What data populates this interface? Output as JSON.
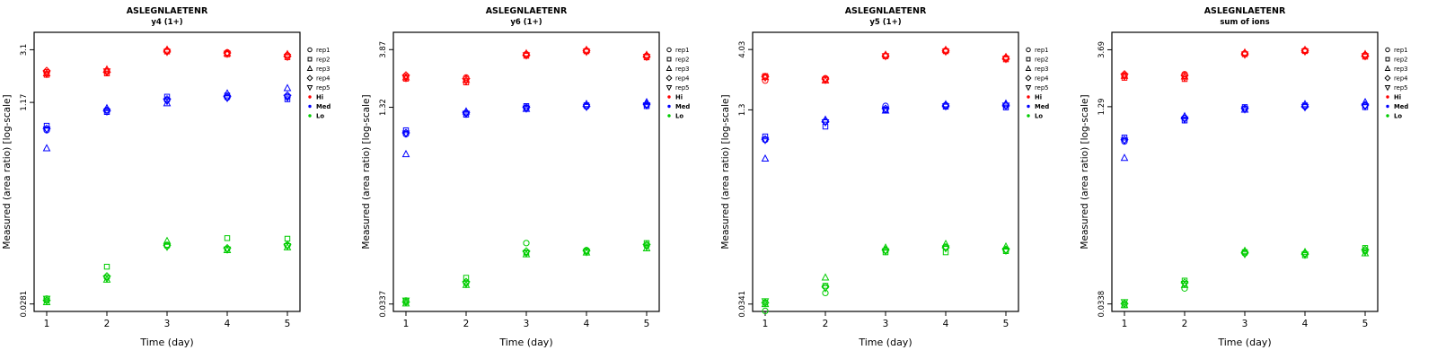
{
  "page": {
    "background": "#ffffff"
  },
  "legend": {
    "reps": [
      {
        "label": "rep1",
        "symbol": "circle"
      },
      {
        "label": "rep2",
        "symbol": "square"
      },
      {
        "label": "rep3",
        "symbol": "triangle-up"
      },
      {
        "label": "rep4",
        "symbol": "diamond"
      },
      {
        "label": "rep5",
        "symbol": "triangle-down"
      }
    ],
    "groups": [
      {
        "label": "Hi",
        "color": "#FF0000"
      },
      {
        "label": "Med",
        "color": "#0000FF"
      },
      {
        "label": "Lo",
        "color": "#00CC00"
      }
    ]
  },
  "chart_data": [
    {
      "type": "scatter",
      "title": "ASLEGNLAETENR",
      "subtitle": "y4 (1+)",
      "xlabel": "Time (day)",
      "ylabel": "Measured (area ratio) [log-scale]",
      "x_ticks": [
        1,
        2,
        3,
        4,
        5
      ],
      "y_scale": "log",
      "y_ticks": [
        0.0281,
        1.17,
        3.1
      ],
      "y_tick_labels": [
        "0.0281",
        "1.17",
        "3.1"
      ],
      "series": [
        {
          "name": "Hi",
          "color": "#FF0000",
          "rep_values": [
            [
              2.05,
              2.1,
              3.05,
              2.95,
              2.8
            ],
            [
              1.95,
              2.0,
              3.0,
              2.85,
              2.7
            ],
            [
              2.0,
              2.15,
              3.1,
              2.9,
              2.85
            ],
            [
              2.1,
              2.05,
              3.02,
              2.92,
              2.75
            ],
            [
              1.98,
              2.08,
              2.98,
              2.88,
              2.72
            ]
          ]
        },
        {
          "name": "Med",
          "color": "#0000FF",
          "rep_values": [
            [
              0.7,
              1.02,
              1.22,
              1.28,
              1.3
            ],
            [
              0.76,
              0.98,
              1.3,
              1.33,
              1.24
            ],
            [
              0.5,
              1.05,
              1.15,
              1.38,
              1.52
            ],
            [
              0.72,
              1.0,
              1.24,
              1.3,
              1.33
            ],
            [
              0.71,
              0.99,
              1.2,
              1.27,
              1.28
            ]
          ]
        },
        {
          "name": "Lo",
          "color": "#00CC00",
          "rep_values": [
            [
              0.031,
              0.046,
              0.082,
              0.078,
              0.083
            ],
            [
              0.03,
              0.056,
              0.084,
              0.095,
              0.094
            ],
            [
              0.029,
              0.044,
              0.09,
              0.076,
              0.08
            ],
            [
              0.03,
              0.047,
              0.083,
              0.079,
              0.084
            ],
            [
              0.031,
              0.045,
              0.081,
              0.077,
              0.082
            ]
          ]
        }
      ]
    },
    {
      "type": "scatter",
      "title": "ASLEGNLAETENR",
      "subtitle": "y6 (1+)",
      "xlabel": "Time (day)",
      "ylabel": "Measured (area ratio) [log-scale]",
      "x_ticks": [
        1,
        2,
        3,
        4,
        5
      ],
      "y_scale": "log",
      "y_ticks": [
        0.0337,
        1.32,
        3.87
      ],
      "y_tick_labels": [
        "0.0337",
        "1.32",
        "3.87"
      ],
      "series": [
        {
          "name": "Hi",
          "color": "#FF0000",
          "rep_values": [
            [
              2.35,
              2.3,
              3.55,
              3.8,
              3.45
            ],
            [
              2.25,
              2.1,
              3.45,
              3.75,
              3.35
            ],
            [
              2.3,
              2.2,
              3.6,
              3.85,
              3.5
            ],
            [
              2.4,
              2.25,
              3.5,
              3.78,
              3.4
            ],
            [
              2.28,
              2.15,
              3.48,
              3.72,
              3.38
            ]
          ]
        },
        {
          "name": "Med",
          "color": "#0000FF",
          "rep_values": [
            [
              0.8,
              1.18,
              1.3,
              1.34,
              1.38
            ],
            [
              0.86,
              1.15,
              1.35,
              1.37,
              1.35
            ],
            [
              0.55,
              1.22,
              1.28,
              1.4,
              1.45
            ],
            [
              0.82,
              1.2,
              1.32,
              1.35,
              1.4
            ],
            [
              0.81,
              1.17,
              1.29,
              1.33,
              1.37
            ]
          ]
        },
        {
          "name": "Lo",
          "color": "#00CC00",
          "rep_values": [
            [
              0.036,
              0.05,
              0.105,
              0.092,
              0.1
            ],
            [
              0.035,
              0.055,
              0.088,
              0.09,
              0.105
            ],
            [
              0.034,
              0.048,
              0.085,
              0.088,
              0.095
            ],
            [
              0.035,
              0.051,
              0.09,
              0.091,
              0.102
            ],
            [
              0.036,
              0.049,
              0.087,
              0.089,
              0.098
            ]
          ]
        }
      ]
    },
    {
      "type": "scatter",
      "title": "ASLEGNLAETENR",
      "subtitle": "y5 (1+)",
      "xlabel": "Time (day)",
      "ylabel": "Measured (area ratio) [log-scale]",
      "x_ticks": [
        1,
        2,
        3,
        4,
        5
      ],
      "y_scale": "log",
      "y_ticks": [
        0.0341,
        1.3,
        4.03
      ],
      "y_tick_labels": [
        "0.0341",
        "1.3",
        "4.03"
      ],
      "series": [
        {
          "name": "Hi",
          "color": "#FF0000",
          "rep_values": [
            [
              2.25,
              2.35,
              3.6,
              3.95,
              3.45
            ],
            [
              2.45,
              2.3,
              3.55,
              3.9,
              3.35
            ],
            [
              2.4,
              2.25,
              3.65,
              4.0,
              3.5
            ],
            [
              2.42,
              2.32,
              3.58,
              3.92,
              3.4
            ],
            [
              2.38,
              2.28,
              3.56,
              3.88,
              3.38
            ]
          ]
        },
        {
          "name": "Med",
          "color": "#0000FF",
          "rep_values": [
            [
              0.74,
              1.05,
              1.4,
              1.42,
              1.4
            ],
            [
              0.79,
              0.95,
              1.3,
              1.38,
              1.36
            ],
            [
              0.52,
              1.08,
              1.28,
              1.44,
              1.46
            ],
            [
              0.75,
              1.04,
              1.33,
              1.4,
              1.42
            ],
            [
              0.74,
              1.03,
              1.31,
              1.39,
              1.41
            ]
          ]
        },
        {
          "name": "Lo",
          "color": "#00CC00",
          "rep_values": [
            [
              0.03,
              0.042,
              0.093,
              0.1,
              0.094
            ],
            [
              0.035,
              0.048,
              0.09,
              0.09,
              0.092
            ],
            [
              0.034,
              0.056,
              0.098,
              0.105,
              0.1
            ],
            [
              0.035,
              0.047,
              0.094,
              0.098,
              0.095
            ],
            [
              0.036,
              0.046,
              0.092,
              0.097,
              0.093
            ]
          ]
        }
      ]
    },
    {
      "type": "scatter",
      "title": "ASLEGNLAETENR",
      "subtitle": "sum of ions",
      "xlabel": "Time (day)",
      "ylabel": "Measured (area ratio) [log-scale]",
      "x_ticks": [
        1,
        2,
        3,
        4,
        5
      ],
      "y_scale": "log",
      "y_ticks": [
        0.0338,
        1.29,
        3.69
      ],
      "y_tick_labels": [
        "0.0338",
        "1.29",
        "3.69"
      ],
      "series": [
        {
          "name": "Hi",
          "color": "#FF0000",
          "rep_values": [
            [
              2.3,
              2.35,
              3.45,
              3.65,
              3.35
            ],
            [
              2.2,
              2.15,
              3.4,
              3.6,
              3.25
            ],
            [
              2.28,
              2.25,
              3.5,
              3.68,
              3.4
            ],
            [
              2.35,
              2.3,
              3.42,
              3.62,
              3.3
            ],
            [
              2.26,
              2.2,
              3.38,
              3.58,
              3.28
            ]
          ]
        },
        {
          "name": "Med",
          "color": "#0000FF",
          "rep_values": [
            [
              0.68,
              1.05,
              1.24,
              1.3,
              1.32
            ],
            [
              0.73,
              1.0,
              1.28,
              1.32,
              1.28
            ],
            [
              0.5,
              1.08,
              1.22,
              1.35,
              1.4
            ],
            [
              0.7,
              1.04,
              1.25,
              1.29,
              1.33
            ],
            [
              0.69,
              1.02,
              1.23,
              1.28,
              1.3
            ]
          ]
        },
        {
          "name": "Lo",
          "color": "#00CC00",
          "rep_values": [
            [
              0.034,
              0.045,
              0.086,
              0.086,
              0.09
            ],
            [
              0.033,
              0.052,
              0.088,
              0.083,
              0.095
            ],
            [
              0.033,
              0.048,
              0.09,
              0.088,
              0.086
            ],
            [
              0.034,
              0.05,
              0.087,
              0.085,
              0.092
            ],
            [
              0.035,
              0.049,
              0.085,
              0.084,
              0.088
            ]
          ]
        }
      ]
    }
  ]
}
